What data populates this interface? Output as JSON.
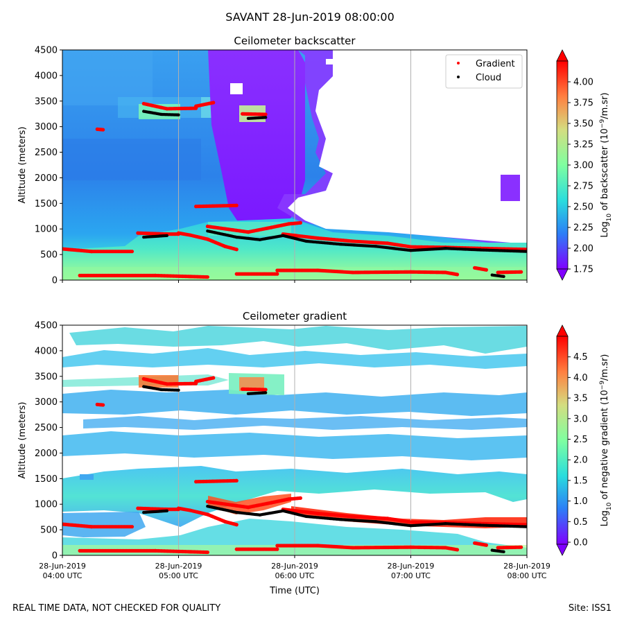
{
  "suptitle": "SAVANT 28-Jun-2019 08:00:00",
  "footer": {
    "left": "REAL TIME DATA, NOT CHECKED FOR QUALITY",
    "right": "Site: ISS1"
  },
  "colors": {
    "gradient_marker": "#ff0000",
    "cloud_marker": "#000000",
    "rainbow_stops": [
      "#8000ff",
      "#2c7ef7",
      "#2adddd",
      "#7fffa0",
      "#d4dd80",
      "#ff7f40",
      "#ff0000"
    ]
  },
  "chart_data": [
    {
      "type": "heatmap",
      "id": "backscatter",
      "title": "Ceilometer backscatter",
      "xlabel": "",
      "ylabel": "Altitude (meters)",
      "ylim": [
        0,
        4500
      ],
      "yticks": [
        "0",
        "500",
        "1000",
        "1500",
        "2000",
        "2500",
        "3000",
        "3500",
        "4000",
        "4500"
      ],
      "xticks_hours": [
        4,
        5,
        6,
        7,
        8
      ],
      "xlim_hours": [
        4,
        8
      ],
      "grid": "vertical",
      "colorbar": {
        "label": "Log10 of backscatter (10^-9/m.sr)",
        "label_main": "Log",
        "label_sub": "10",
        "label_rest": " of backscatter (10",
        "label_sup": "−9",
        "label_end": "/m.sr)",
        "range": [
          1.75,
          4.25
        ],
        "ticks": [
          "1.75",
          "2.00",
          "2.25",
          "2.50",
          "2.75",
          "3.00",
          "3.25",
          "3.50",
          "3.75",
          "4.00"
        ]
      },
      "legend": {
        "position": "top-right",
        "entries": [
          {
            "label": "Gradient",
            "color": "#ff0000"
          },
          {
            "label": "Cloud",
            "color": "#000000"
          }
        ]
      },
      "series": [
        {
          "name": "Gradient",
          "segments": [
            [
              [
                4.0,
                610
              ],
              [
                4.25,
                560
              ],
              [
                4.6,
                560
              ]
            ],
            [
              [
                4.15,
                90
              ],
              [
                4.8,
                90
              ],
              [
                5.1,
                70
              ],
              [
                5.25,
                60
              ]
            ],
            [
              [
                4.65,
                920
              ],
              [
                4.9,
                900
              ],
              [
                5.0,
                900
              ]
            ],
            [
              [
                5.0,
                920
              ],
              [
                5.1,
                880
              ],
              [
                5.25,
                800
              ],
              [
                5.4,
                660
              ],
              [
                5.5,
                600
              ]
            ],
            [
              [
                4.7,
                3450
              ],
              [
                4.9,
                3350
              ],
              [
                5.15,
                3360
              ]
            ],
            [
              [
                5.15,
                3400
              ],
              [
                5.3,
                3470
              ]
            ],
            [
              [
                4.3,
                2950
              ],
              [
                4.35,
                2940
              ]
            ],
            [
              [
                5.15,
                1440
              ],
              [
                5.5,
                1460
              ]
            ],
            [
              [
                5.25,
                1050
              ],
              [
                5.6,
                940
              ],
              [
                5.8,
                1030
              ],
              [
                5.95,
                1100
              ],
              [
                6.05,
                1120
              ]
            ],
            [
              [
                5.55,
                3250
              ],
              [
                5.75,
                3240
              ]
            ],
            [
              [
                5.5,
                120
              ],
              [
                5.85,
                120
              ]
            ],
            [
              [
                5.85,
                190
              ],
              [
                6.2,
                190
              ],
              [
                6.5,
                150
              ],
              [
                7.0,
                160
              ],
              [
                7.3,
                150
              ],
              [
                7.4,
                110
              ]
            ],
            [
              [
                5.9,
                900
              ],
              [
                6.2,
                820
              ],
              [
                6.5,
                760
              ],
              [
                6.8,
                720
              ],
              [
                7.0,
                650
              ],
              [
                7.3,
                640
              ],
              [
                7.6,
                620
              ],
              [
                8.0,
                600
              ]
            ],
            [
              [
                7.55,
                240
              ],
              [
                7.65,
                200
              ]
            ],
            [
              [
                7.75,
                150
              ],
              [
                7.95,
                160
              ]
            ]
          ]
        },
        {
          "name": "Cloud",
          "segments": [
            [
              [
                4.7,
                3300
              ],
              [
                4.85,
                3240
              ],
              [
                5.0,
                3230
              ]
            ],
            [
              [
                5.6,
                3160
              ],
              [
                5.75,
                3180
              ]
            ],
            [
              [
                4.7,
                840
              ],
              [
                4.9,
                870
              ]
            ],
            [
              [
                5.25,
                960
              ],
              [
                5.5,
                840
              ],
              [
                5.7,
                790
              ],
              [
                5.9,
                870
              ],
              [
                6.1,
                760
              ],
              [
                6.4,
                700
              ],
              [
                6.7,
                660
              ],
              [
                7.0,
                580
              ],
              [
                7.3,
                620
              ],
              [
                7.6,
                590
              ],
              [
                8.0,
                560
              ]
            ],
            [
              [
                7.7,
                100
              ],
              [
                7.8,
                70
              ]
            ]
          ]
        }
      ]
    },
    {
      "type": "heatmap",
      "id": "gradient",
      "title": "Ceilometer gradient",
      "xlabel": "Time (UTC)",
      "ylabel": "Altitude (meters)",
      "ylim": [
        0,
        4500
      ],
      "yticks": [
        "0",
        "500",
        "1000",
        "1500",
        "2000",
        "2500",
        "3000",
        "3500",
        "4000",
        "4500"
      ],
      "xticks_hours": [
        4,
        5,
        6,
        7,
        8
      ],
      "xticklabels": [
        [
          "28-Jun-2019",
          "04:00 UTC"
        ],
        [
          "28-Jun-2019",
          "05:00 UTC"
        ],
        [
          "28-Jun-2019",
          "06:00 UTC"
        ],
        [
          "28-Jun-2019",
          "07:00 UTC"
        ],
        [
          "28-Jun-2019",
          "08:00 UTC"
        ]
      ],
      "xlim_hours": [
        4,
        8
      ],
      "grid": "vertical",
      "colorbar": {
        "label": "Log10 of negative gradient (10^-9/m.sr)",
        "label_main": "Log",
        "label_sub": "10",
        "label_rest": " of negative gradient (10",
        "label_sup": "−9",
        "label_end": "/m.sr)",
        "range": [
          -0.05,
          5.0
        ],
        "ticks": [
          "0.0",
          "0.5",
          "1.0",
          "1.5",
          "2.0",
          "2.5",
          "3.0",
          "3.5",
          "4.0",
          "4.5"
        ]
      },
      "series": [
        {
          "name": "Gradient",
          "segments": [
            [
              [
                4.0,
                610
              ],
              [
                4.25,
                560
              ],
              [
                4.6,
                560
              ]
            ],
            [
              [
                4.15,
                90
              ],
              [
                4.8,
                90
              ],
              [
                5.1,
                70
              ],
              [
                5.25,
                60
              ]
            ],
            [
              [
                4.65,
                920
              ],
              [
                4.9,
                900
              ],
              [
                5.0,
                900
              ]
            ],
            [
              [
                5.0,
                920
              ],
              [
                5.1,
                880
              ],
              [
                5.25,
                800
              ],
              [
                5.4,
                660
              ],
              [
                5.5,
                600
              ]
            ],
            [
              [
                4.7,
                3450
              ],
              [
                4.9,
                3350
              ],
              [
                5.15,
                3360
              ]
            ],
            [
              [
                5.15,
                3400
              ],
              [
                5.3,
                3470
              ]
            ],
            [
              [
                4.3,
                2950
              ],
              [
                4.35,
                2940
              ]
            ],
            [
              [
                5.15,
                1440
              ],
              [
                5.5,
                1460
              ]
            ],
            [
              [
                5.25,
                1050
              ],
              [
                5.6,
                940
              ],
              [
                5.8,
                1030
              ],
              [
                5.95,
                1100
              ],
              [
                6.05,
                1120
              ]
            ],
            [
              [
                5.55,
                3250
              ],
              [
                5.75,
                3240
              ]
            ],
            [
              [
                5.5,
                120
              ],
              [
                5.85,
                120
              ]
            ],
            [
              [
                5.85,
                190
              ],
              [
                6.2,
                190
              ],
              [
                6.5,
                150
              ],
              [
                7.0,
                160
              ],
              [
                7.3,
                150
              ],
              [
                7.4,
                110
              ]
            ],
            [
              [
                5.9,
                900
              ],
              [
                6.2,
                820
              ],
              [
                6.5,
                760
              ],
              [
                6.8,
                720
              ],
              [
                7.0,
                650
              ],
              [
                7.3,
                640
              ],
              [
                7.6,
                620
              ],
              [
                8.0,
                600
              ]
            ],
            [
              [
                7.55,
                240
              ],
              [
                7.65,
                200
              ]
            ],
            [
              [
                7.75,
                150
              ],
              [
                7.95,
                160
              ]
            ]
          ]
        },
        {
          "name": "Cloud",
          "segments": [
            [
              [
                4.7,
                3300
              ],
              [
                4.85,
                3240
              ],
              [
                5.0,
                3230
              ]
            ],
            [
              [
                5.6,
                3160
              ],
              [
                5.75,
                3180
              ]
            ],
            [
              [
                4.7,
                840
              ],
              [
                4.9,
                870
              ]
            ],
            [
              [
                5.25,
                960
              ],
              [
                5.5,
                840
              ],
              [
                5.7,
                790
              ],
              [
                5.9,
                870
              ],
              [
                6.1,
                760
              ],
              [
                6.4,
                700
              ],
              [
                6.7,
                660
              ],
              [
                7.0,
                580
              ],
              [
                7.3,
                620
              ],
              [
                7.6,
                590
              ],
              [
                8.0,
                560
              ]
            ],
            [
              [
                7.7,
                100
              ],
              [
                7.8,
                70
              ]
            ]
          ]
        }
      ]
    }
  ]
}
